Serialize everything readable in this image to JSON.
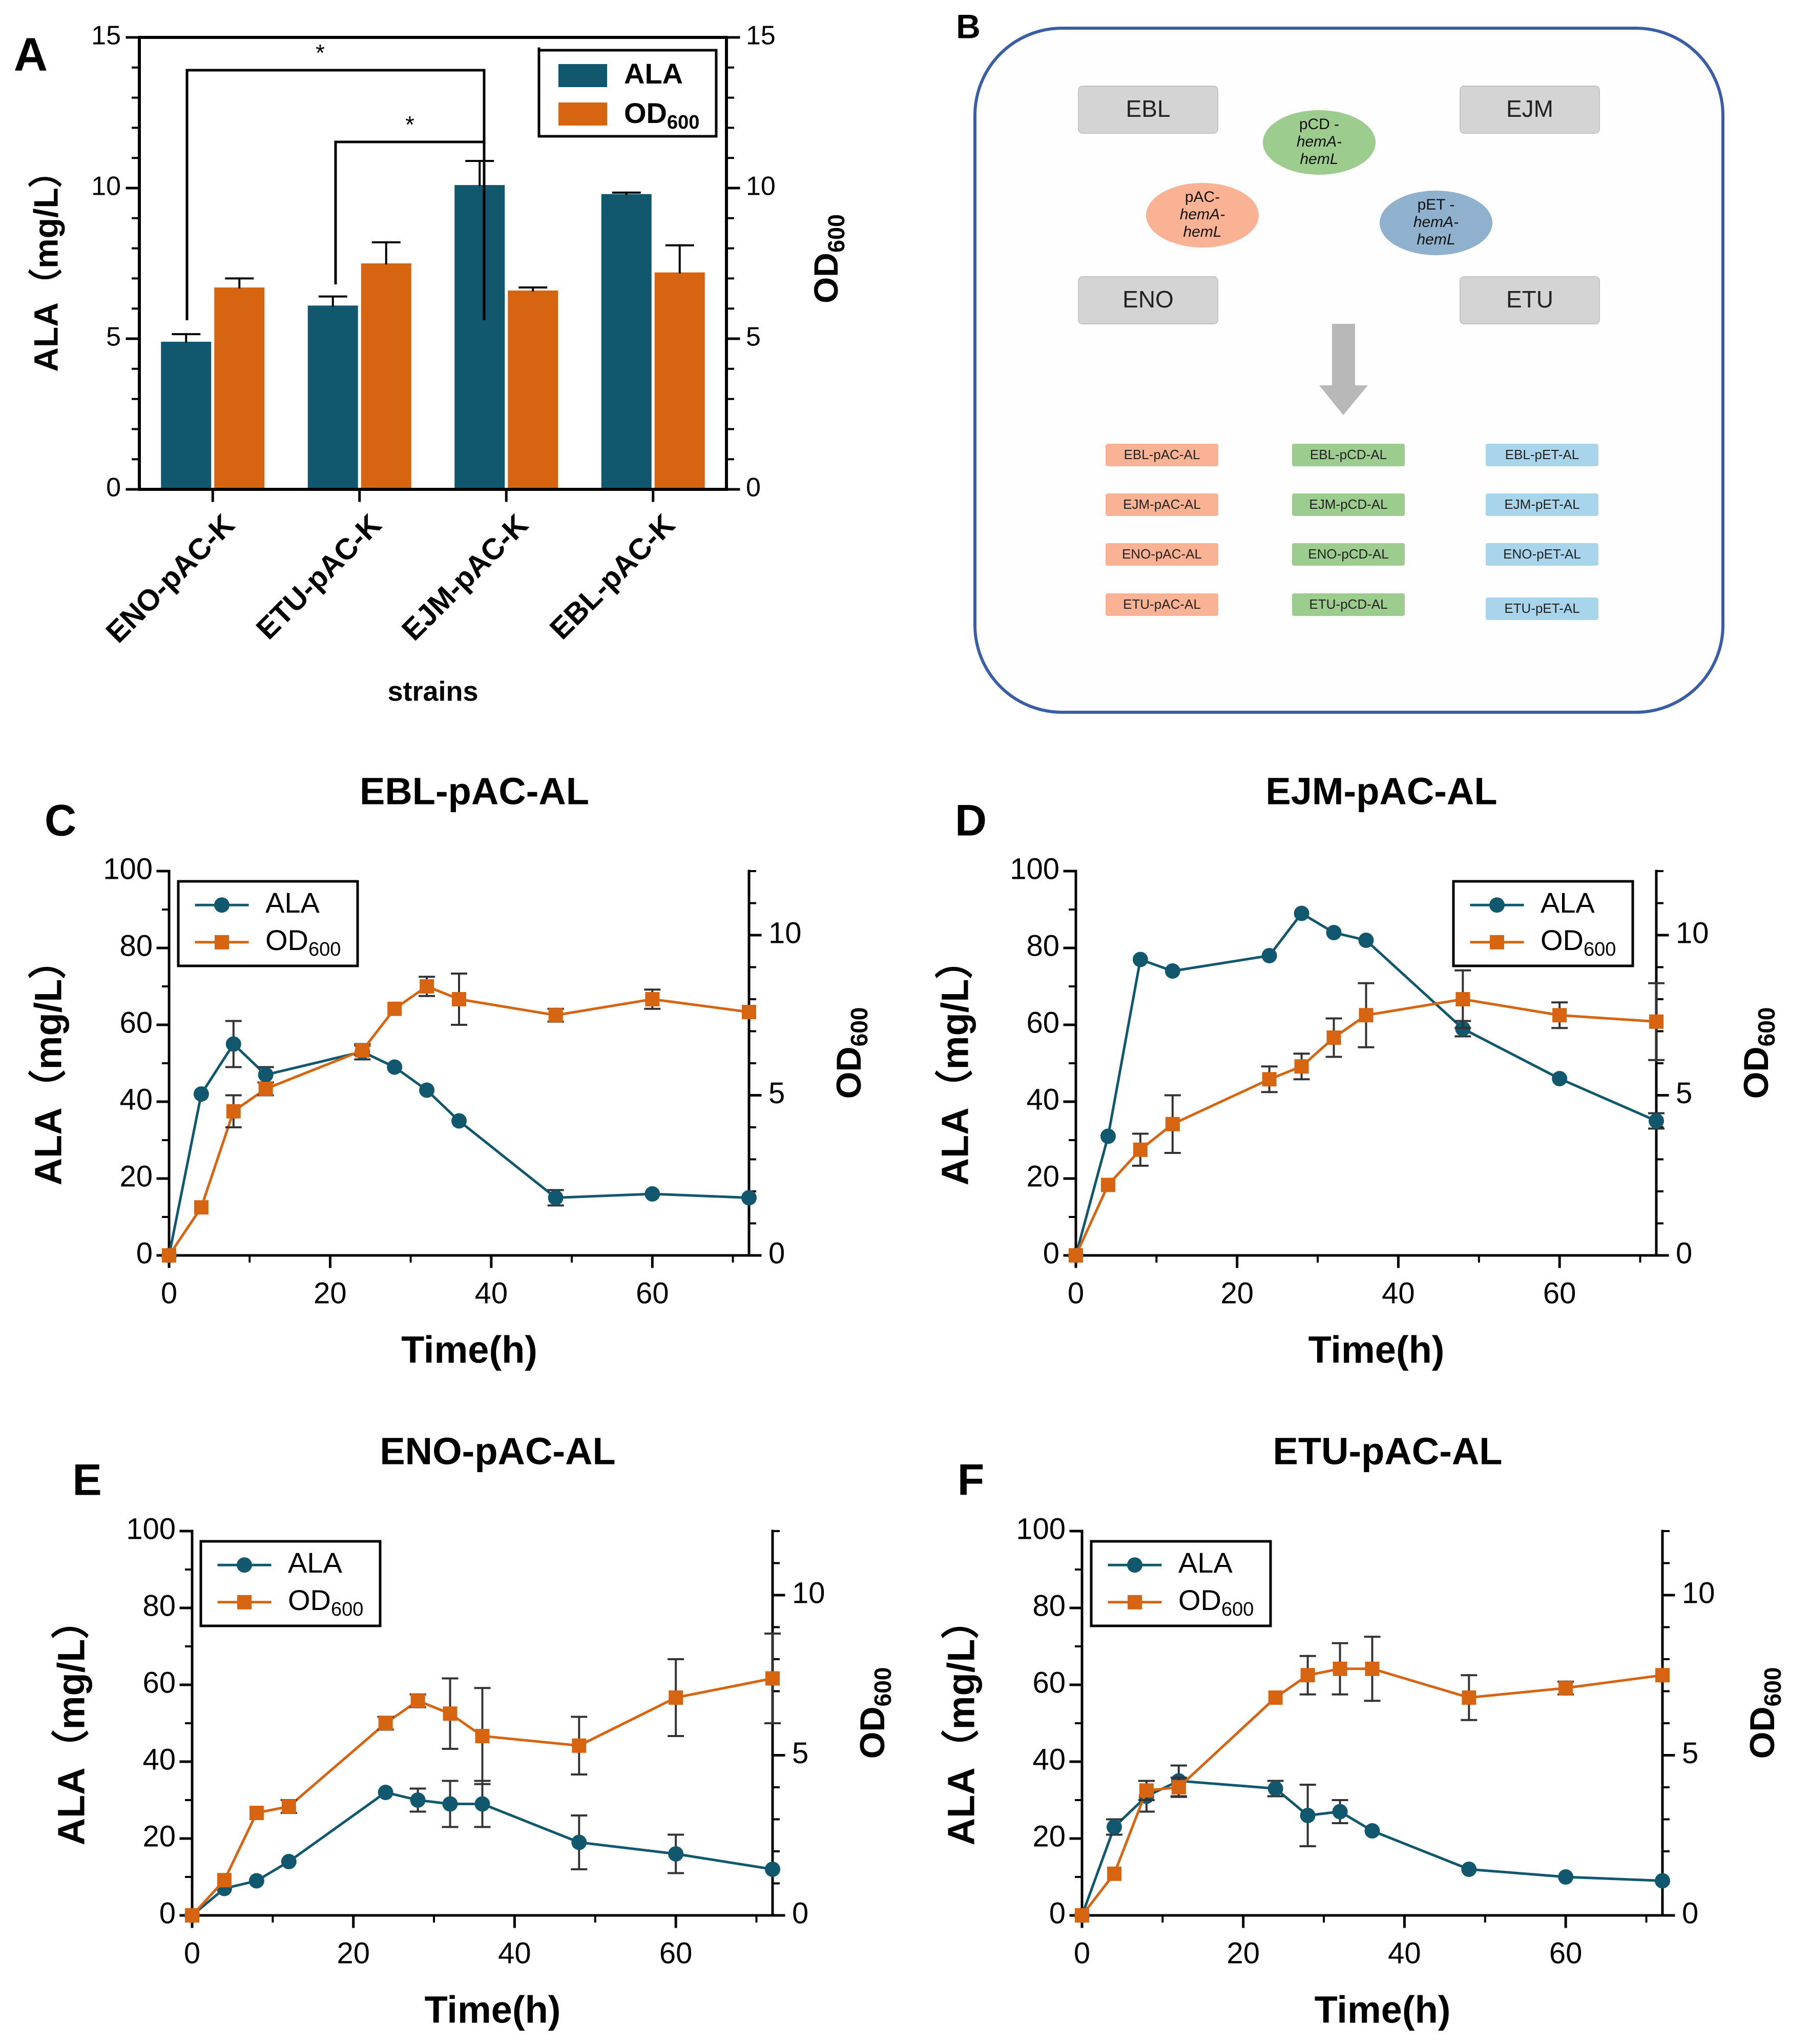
{
  "colors": {
    "teal": "#11586E",
    "orange": "#D66410",
    "axis": "#000000",
    "grey_box": "#D4D4D4",
    "panel_border": "#3A5DA8",
    "panel_bg": "#FEFEFE",
    "salmon": "#F9B293",
    "green": "#9CCC8E",
    "blue": "#A9D5EC",
    "plasmid_blue": "#8FB1CE"
  },
  "panel_a": {
    "letter": "A",
    "xlabel": "strains",
    "ylabel_left": "ALA（mg/L）",
    "ylabel_right": "OD",
    "ylabel_right_sub": "600",
    "legend": {
      "ala": "ALA",
      "od": "OD",
      "od_sub": "600"
    },
    "significance": "*"
  },
  "panel_b": {
    "letter": "B",
    "strains": [
      "EBL",
      "EJM",
      "ENO",
      "ETU"
    ],
    "plasmids": [
      {
        "l1": "pAC-",
        "l2": "hemA-",
        "l3": "hemL"
      },
      {
        "l1": "pCD -",
        "l2": "hemA-",
        "l3": "hemL"
      },
      {
        "l1": "pET -",
        "l2": "hemA-",
        "l3": "hemL"
      }
    ],
    "columns": [
      [
        "EBL-pAC-AL",
        "EJM-pAC-AL",
        "ENO-pAC-AL",
        "ETU-pAC-AL"
      ],
      [
        "EBL-pCD-AL",
        "EJM-pCD-AL",
        "ENO-pCD-AL",
        "ETU-pCD-AL"
      ],
      [
        "EBL-pET-AL",
        "EJM-pET-AL",
        "ENO-pET-AL",
        "ETU-pET-AL"
      ]
    ]
  },
  "line_labels": {
    "xlabel": "Time(h)",
    "ylabel_left": "ALA（mg/L）",
    "ylabel_right": "OD",
    "ylabel_right_sub": "600",
    "legend_ala": "ALA",
    "legend_od": "OD",
    "legend_od_sub": "600"
  },
  "chart_data": [
    {
      "id": "A",
      "type": "bar",
      "title": "",
      "xlabel": "strains",
      "ylabel": "ALA（mg/L）",
      "y2label": "OD600",
      "categories": [
        "ENO-pAC-K",
        "ETU-pAC-K",
        "EJM-pAC-K",
        "EBL-pAC-K"
      ],
      "series": [
        {
          "name": "ALA",
          "axis": "left",
          "values": [
            4.9,
            6.1,
            10.1,
            9.8
          ],
          "errors": [
            0.25,
            0.3,
            0.8,
            0.05
          ]
        },
        {
          "name": "OD600",
          "axis": "right",
          "values": [
            6.7,
            7.5,
            6.6,
            7.2
          ],
          "errors": [
            0.3,
            0.7,
            0.1,
            0.9
          ]
        }
      ],
      "ylim": [
        0,
        15
      ],
      "y2lim": [
        0,
        15
      ],
      "yticks": [
        0,
        5,
        10,
        15
      ],
      "y2ticks": [
        0,
        5,
        10,
        15
      ],
      "significance": [
        {
          "from": "ENO-pAC-K",
          "to": "EJM-pAC-K",
          "label": "*"
        },
        {
          "from": "ETU-pAC-K",
          "to": "EJM-pAC-K",
          "label": "*"
        }
      ]
    },
    {
      "id": "C",
      "type": "line",
      "title": "EBL-pAC-AL",
      "xlabel": "Time(h)",
      "ylabel": "ALA（mg/L）",
      "y2label": "OD600",
      "x": [
        0,
        4,
        8,
        12,
        24,
        28,
        32,
        36,
        48,
        60,
        72
      ],
      "series": [
        {
          "name": "ALA",
          "axis": "left",
          "values": [
            0,
            42,
            55,
            47,
            53,
            49,
            43,
            35,
            15,
            16,
            15
          ],
          "errors": [
            0,
            0,
            6,
            2,
            2,
            0,
            0,
            0,
            2,
            0,
            0
          ]
        },
        {
          "name": "OD600",
          "axis": "right",
          "values": [
            0,
            1.5,
            4.5,
            5.2,
            6.4,
            7.7,
            8.4,
            8.0,
            7.5,
            8.0,
            7.6
          ],
          "errors": [
            0,
            0,
            0.5,
            0.2,
            0.15,
            0,
            0.3,
            0.8,
            0.2,
            0.3,
            0
          ]
        }
      ],
      "xlim": [
        0,
        72
      ],
      "ylim": [
        0,
        100
      ],
      "y2lim": [
        0,
        12
      ],
      "xticks": [
        0,
        20,
        40,
        60
      ],
      "yticks": [
        0,
        20,
        40,
        60,
        80,
        100
      ],
      "y2ticks": [
        0,
        5,
        10
      ],
      "legend": "top-left"
    },
    {
      "id": "D",
      "type": "line",
      "title": "EJM-pAC-AL",
      "xlabel": "Time(h)",
      "ylabel": "ALA（mg/L）",
      "y2label": "OD600",
      "x": [
        0,
        4,
        8,
        12,
        24,
        28,
        32,
        36,
        48,
        60,
        72
      ],
      "series": [
        {
          "name": "ALA",
          "axis": "left",
          "values": [
            0,
            31,
            77,
            74,
            78,
            89,
            84,
            82,
            59,
            46,
            35
          ],
          "errors": [
            0,
            0,
            0,
            0,
            0,
            0,
            0,
            0,
            2,
            0,
            2
          ]
        },
        {
          "name": "OD600",
          "axis": "right",
          "values": [
            0,
            2.2,
            3.3,
            4.1,
            5.5,
            5.9,
            6.8,
            7.5,
            8.0,
            7.5,
            7.3
          ],
          "errors": [
            0,
            0,
            0.5,
            0.9,
            0.4,
            0.4,
            0.6,
            1.0,
            0.9,
            0.4,
            1.2
          ]
        }
      ],
      "xlim": [
        0,
        72
      ],
      "ylim": [
        0,
        100
      ],
      "y2lim": [
        0,
        12
      ],
      "xticks": [
        0,
        20,
        40,
        60
      ],
      "yticks": [
        0,
        20,
        40,
        60,
        80,
        100
      ],
      "y2ticks": [
        0,
        5,
        10
      ],
      "legend": "top-right"
    },
    {
      "id": "E",
      "type": "line",
      "title": "ENO-pAC-AL",
      "xlabel": "Time(h)",
      "ylabel": "ALA（mg/L）",
      "y2label": "OD600",
      "x": [
        0,
        4,
        8,
        12,
        24,
        28,
        32,
        36,
        48,
        60,
        72
      ],
      "series": [
        {
          "name": "ALA",
          "axis": "left",
          "values": [
            0,
            7,
            9,
            14,
            32,
            30,
            29,
            29,
            19,
            16,
            12
          ],
          "errors": [
            0,
            0,
            0,
            0,
            0,
            3,
            6,
            6,
            7,
            5,
            0
          ]
        },
        {
          "name": "OD600",
          "axis": "right",
          "values": [
            0,
            1.1,
            3.2,
            3.4,
            6.0,
            6.7,
            6.3,
            5.6,
            5.3,
            6.8,
            7.4
          ],
          "errors": [
            0,
            0,
            0,
            0.2,
            0.2,
            0.2,
            1.1,
            1.5,
            0.9,
            1.2,
            1.4
          ]
        }
      ],
      "xlim": [
        0,
        72
      ],
      "ylim": [
        0,
        100
      ],
      "y2lim": [
        0,
        12
      ],
      "xticks": [
        0,
        20,
        40,
        60
      ],
      "yticks": [
        0,
        20,
        40,
        60,
        80,
        100
      ],
      "y2ticks": [
        0,
        5,
        10
      ],
      "legend": "top-left"
    },
    {
      "id": "F",
      "type": "line",
      "title": "ETU-pAC-AL",
      "xlabel": "Time(h)",
      "ylabel": "ALA（mg/L）",
      "y2label": "OD600",
      "x": [
        0,
        4,
        8,
        12,
        24,
        28,
        32,
        36,
        48,
        60,
        72
      ],
      "series": [
        {
          "name": "ALA",
          "axis": "left",
          "values": [
            0,
            23,
            31,
            35,
            33,
            26,
            27,
            22,
            12,
            10,
            9
          ],
          "errors": [
            0,
            2,
            4,
            4,
            2,
            8,
            3,
            0,
            0,
            0,
            0
          ]
        },
        {
          "name": "OD600",
          "axis": "right",
          "values": [
            0,
            1.3,
            3.9,
            4.0,
            6.8,
            7.5,
            7.7,
            7.7,
            6.8,
            7.1,
            7.5
          ],
          "errors": [
            0,
            0,
            0.3,
            0.3,
            0,
            0.6,
            0.8,
            1.0,
            0.7,
            0.2,
            0
          ]
        }
      ],
      "xlim": [
        0,
        72
      ],
      "ylim": [
        0,
        100
      ],
      "y2lim": [
        0,
        12
      ],
      "xticks": [
        0,
        20,
        40,
        60
      ],
      "yticks": [
        0,
        20,
        40,
        60,
        80,
        100
      ],
      "y2ticks": [
        0,
        5,
        10
      ],
      "legend": "top-left"
    }
  ]
}
